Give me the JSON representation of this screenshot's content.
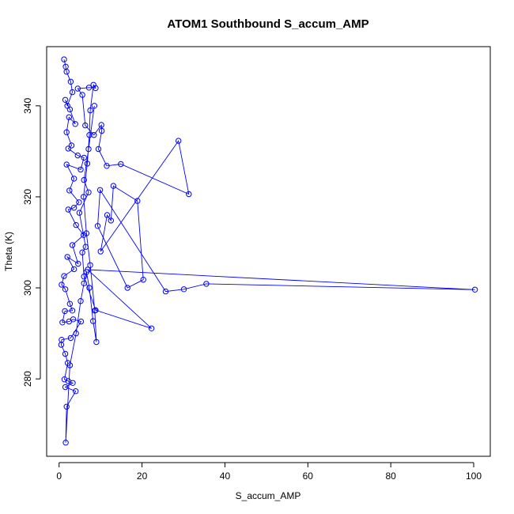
{
  "chart_data": {
    "type": "line",
    "title": "ATOM1 Southbound S_accum_AMP",
    "xlabel": "S_accum_AMP",
    "ylabel": "Theta (K)",
    "xlim": [
      -3,
      104
    ],
    "ylim": [
      263,
      353
    ],
    "xticks": [
      0,
      20,
      40,
      60,
      80,
      100
    ],
    "yticks": [
      280,
      300,
      320,
      340
    ],
    "grid": false,
    "legend": "none",
    "color": "#0000ff",
    "markers": "open-circle",
    "series": [
      {
        "points": [
          [
            1.2,
            350.2
          ],
          [
            1.6,
            348.6
          ],
          [
            1.8,
            347.5
          ],
          [
            2.8,
            345.3
          ],
          [
            3.2,
            343.0
          ],
          [
            2.0,
            340.0
          ],
          [
            1.5,
            341.3
          ],
          [
            2.6,
            339.2
          ],
          [
            3.9,
            336.0
          ],
          [
            2.4,
            337.5
          ],
          [
            1.8,
            334.2
          ],
          [
            3.0,
            331.3
          ],
          [
            2.2,
            330.6
          ],
          [
            4.5,
            329.1
          ],
          [
            6.0,
            328.6
          ],
          [
            5.2,
            326.0
          ],
          [
            1.8,
            327.1
          ],
          [
            3.6,
            324.0
          ],
          [
            2.5,
            321.4
          ],
          [
            4.8,
            318.8
          ],
          [
            3.6,
            317.6
          ],
          [
            2.2,
            317.2
          ],
          [
            4.1,
            313.8
          ],
          [
            5.9,
            311.6
          ],
          [
            3.2,
            309.4
          ],
          [
            4.6,
            305.3
          ],
          [
            2.0,
            306.8
          ],
          [
            3.6,
            304.1
          ],
          [
            1.2,
            302.6
          ],
          [
            0.6,
            300.7
          ],
          [
            1.5,
            299.7
          ],
          [
            2.6,
            296.5
          ],
          [
            3.2,
            295.0
          ],
          [
            1.4,
            294.9
          ],
          [
            0.8,
            292.4
          ],
          [
            2.4,
            292.6
          ],
          [
            3.4,
            293.1
          ],
          [
            5.3,
            292.6
          ],
          [
            2.8,
            289.0
          ],
          [
            0.6,
            288.6
          ],
          [
            0.5,
            287.5
          ],
          [
            1.5,
            285.5
          ],
          [
            2.1,
            283.5
          ],
          [
            1.3,
            279.9
          ],
          [
            2.2,
            279.5
          ],
          [
            3.3,
            279.1
          ],
          [
            1.5,
            278.2
          ],
          [
            4.0,
            277.3
          ],
          [
            1.8,
            273.9
          ],
          [
            1.6,
            266.0
          ],
          [
            2.6,
            283.0
          ],
          [
            4.1,
            290.0
          ],
          [
            5.2,
            297.1
          ],
          [
            6.0,
            301.0
          ],
          [
            6.6,
            303.5
          ],
          [
            7.3,
            300.0
          ],
          [
            8.2,
            292.7
          ],
          [
            9.0,
            288.1
          ],
          [
            8.6,
            295.0
          ],
          [
            7.5,
            305.0
          ],
          [
            6.6,
            312.0
          ],
          [
            5.9,
            320.0
          ],
          [
            6.8,
            327.3
          ],
          [
            7.3,
            333.6
          ],
          [
            7.5,
            339.0
          ],
          [
            8.3,
            344.6
          ],
          [
            8.8,
            343.9
          ],
          [
            7.2,
            344.0
          ],
          [
            4.5,
            343.8
          ],
          [
            5.6,
            342.4
          ],
          [
            6.3,
            335.7
          ],
          [
            8.4,
            333.6
          ],
          [
            10.2,
            335.8
          ],
          [
            10.3,
            334.5
          ],
          [
            9.5,
            330.5
          ],
          [
            11.5,
            326.8
          ],
          [
            14.9,
            327.2
          ],
          [
            31.3,
            320.6
          ],
          [
            28.8,
            332.3
          ],
          [
            10.0,
            308.0
          ],
          [
            11.6,
            316.0
          ],
          [
            12.5,
            314.8
          ],
          [
            13.1,
            322.4
          ],
          [
            18.9,
            319.1
          ],
          [
            20.3,
            301.8
          ],
          [
            16.5,
            300.0
          ],
          [
            9.3,
            313.6
          ],
          [
            9.9,
            321.5
          ],
          [
            25.7,
            299.2
          ],
          [
            30.1,
            299.7
          ],
          [
            35.5,
            300.9
          ],
          [
            100.3,
            299.6
          ],
          [
            6.9,
            304.0
          ],
          [
            22.3,
            291.1
          ],
          [
            8.8,
            295.1
          ],
          [
            6.0,
            302.5
          ],
          [
            5.6,
            307.8
          ],
          [
            6.4,
            309.0
          ],
          [
            4.9,
            316.5
          ],
          [
            7.1,
            321.0
          ],
          [
            6.0,
            323.7
          ],
          [
            7.1,
            330.5
          ],
          [
            8.5,
            340.0
          ]
        ]
      }
    ]
  }
}
